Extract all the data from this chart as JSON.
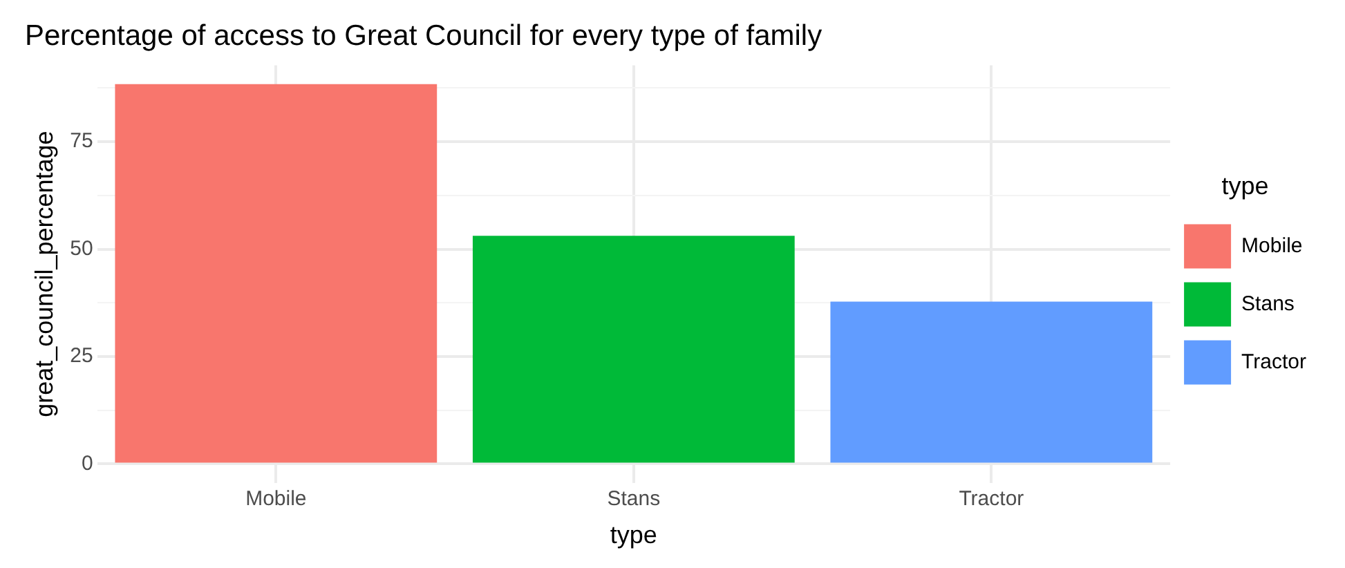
{
  "chart_data": {
    "type": "bar",
    "title": "Percentage of access to Great Council for every type of family",
    "xlabel": "type",
    "ylabel": "great_council_percentage",
    "legend_title": "type",
    "categories": [
      "Mobile",
      "Stans",
      "Tractor"
    ],
    "series": [
      {
        "name": "Mobile",
        "color": "#f8766d",
        "values": [
          88.4,
          null,
          null
        ]
      },
      {
        "name": "Stans",
        "color": "#00ba38",
        "values": [
          null,
          53.1,
          null
        ]
      },
      {
        "name": "Tractor",
        "color": "#619cff",
        "values": [
          null,
          null,
          37.8
        ]
      }
    ],
    "ylim": [
      -4.4,
      92.8
    ],
    "yticks": [
      0,
      {
        "value": 12.5,
        "label": null
      },
      25,
      {
        "value": 37.5,
        "label": null
      },
      50,
      {
        "value": 62.5,
        "label": null
      },
      75,
      {
        "value": 87.5,
        "label": null
      }
    ],
    "grid": true,
    "legend": "right"
  }
}
